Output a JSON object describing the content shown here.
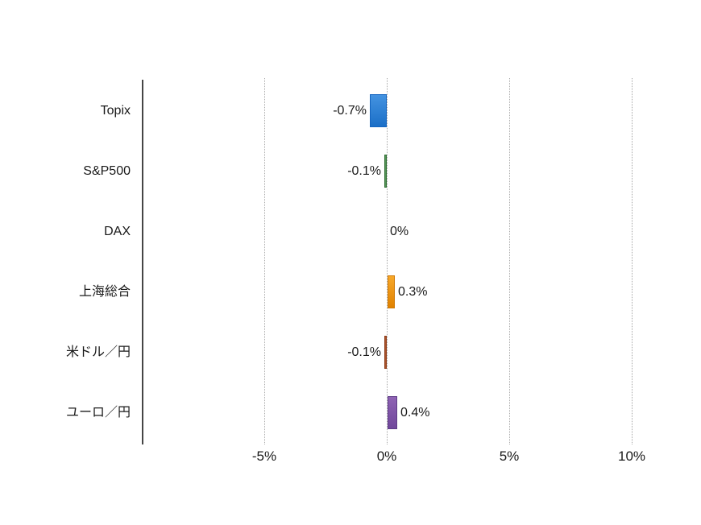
{
  "chart_data": {
    "type": "bar",
    "orientation": "horizontal",
    "title": "",
    "xlabel": "",
    "ylabel": "",
    "ids": [
      "topix",
      "sp500",
      "dax",
      "shanghai-composite",
      "usd-jpy",
      "eur-jpy"
    ],
    "categories": [
      "Topix",
      "S&P500",
      "DAX",
      "上海総合",
      "米ドル／円",
      "ユーロ／円"
    ],
    "values": [
      -0.7,
      -0.1,
      0,
      0.3,
      -0.1,
      0.4
    ],
    "value_labels": [
      "-0.7%",
      "-0.1%",
      "0%",
      "0.3%",
      "-0.1%",
      "0.4%"
    ],
    "colors": [
      {
        "style": "vertical",
        "from": "#4493e1",
        "to": "#1b6fc7",
        "border": "#1565c0"
      },
      {
        "style": "edge-center",
        "edge": "#2d6e31",
        "center": "#7ab87d",
        "border": "#2d6e31"
      },
      null,
      {
        "style": "vertical",
        "from": "#f8a92a",
        "to": "#e08200",
        "border": "#cf7a08"
      },
      {
        "style": "edge-center",
        "edge": "#8e3b17",
        "center": "#c76a3c",
        "border": "#8e3b17"
      },
      {
        "style": "vertical",
        "from": "#8f63b4",
        "to": "#70479b",
        "border": "#5e3c86"
      }
    ],
    "x_ticks": {
      "values": [
        -5,
        0,
        5,
        10
      ],
      "labels": [
        "-5%",
        "0%",
        "5%",
        "10%"
      ]
    },
    "xlim": [
      -10,
      12
    ],
    "grid": "vertical-dotted",
    "legend": "none",
    "background": "#ffffff",
    "text_color": "#1a1a1a",
    "gridline_color": "#a8a8a8",
    "axis_color": "#454545"
  }
}
